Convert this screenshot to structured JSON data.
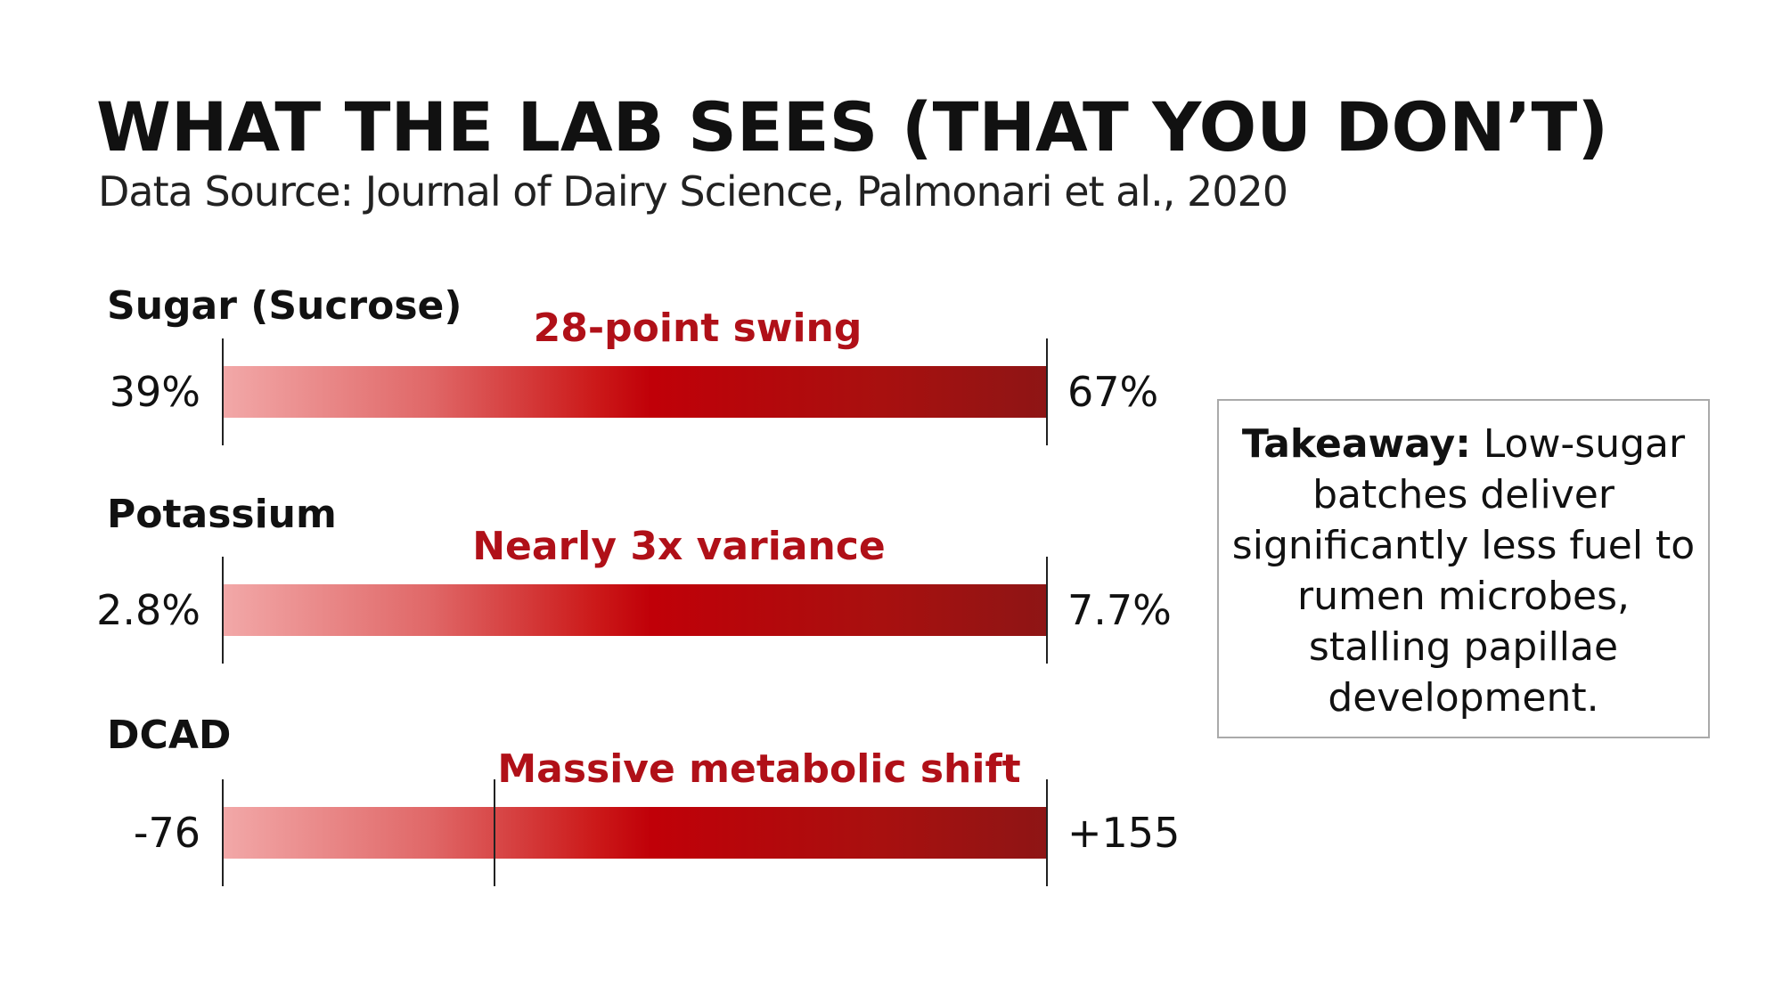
{
  "title": "WHAT THE LAB SEES (THAT YOU DON’T)",
  "subtitle": "Data Source: Journal of Dairy Science, Palmonari et al., 2020",
  "chart_data": {
    "type": "bar",
    "subtype": "range",
    "title": "WHAT THE LAB SEES (THAT YOU DON’T)",
    "series": [
      {
        "name": "Sugar (Sucrose)",
        "min": 39,
        "max": 67,
        "min_label": "39%",
        "max_label": "67%",
        "annotation": "28-point swing"
      },
      {
        "name": "Potassium",
        "min": 2.8,
        "max": 7.7,
        "min_label": "2.8%",
        "max_label": "7.7%",
        "annotation": "Nearly 3x variance"
      },
      {
        "name": "DCAD",
        "min": -76,
        "max": 155,
        "min_label": "-76",
        "max_label": "+155",
        "annotation": "Massive metabolic shift",
        "zero_marker": true
      }
    ],
    "colors": {
      "bar_start": "#f2a8a8",
      "bar_mid": "#c00008",
      "bar_end": "#8e1515",
      "annotation": "#b01018"
    }
  },
  "takeaway": {
    "label": "Takeaway:",
    "text": " Low-sugar batches deliver significantly less fuel to rumen microbes, stalling papillae development."
  }
}
